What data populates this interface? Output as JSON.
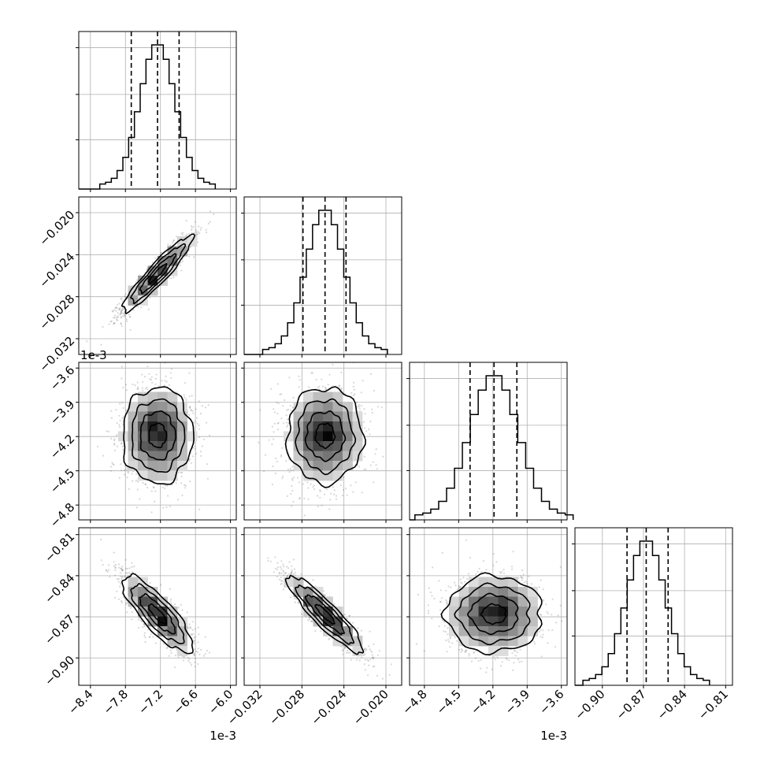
{
  "chart_data": {
    "type": "corner",
    "title": "",
    "parameters": [
      {
        "offset_label": "1e-3",
        "range": [
          -8.6,
          -5.9
        ],
        "ticks": [
          -8.4,
          -7.8,
          -7.2,
          -6.6,
          -6.0
        ],
        "tick_labels": [
          "−8.4",
          "−7.8",
          "−7.2",
          "−6.6",
          "−6.0"
        ],
        "mean": -7.25,
        "sigma": 0.3,
        "quantiles": [
          -7.7,
          -7.25,
          -6.88
        ]
      },
      {
        "offset_label": "",
        "range": [
          -0.0335,
          -0.0185
        ],
        "ticks": [
          -0.032,
          -0.028,
          -0.024,
          -0.02
        ],
        "tick_labels": [
          "−0.032",
          "−0.028",
          "−0.024",
          "−0.020"
        ],
        "mean": -0.0258,
        "sigma": 0.0018,
        "quantiles": [
          -0.0279,
          -0.0258,
          -0.0238
        ]
      },
      {
        "offset_label": "1e-3",
        "range": [
          -4.93,
          -3.55
        ],
        "ticks": [
          -4.8,
          -4.5,
          -4.2,
          -3.9,
          -3.6
        ],
        "tick_labels": [
          "−4.8",
          "−4.5",
          "−4.2",
          "−3.9",
          "−3.6"
        ],
        "mean": -4.19,
        "sigma": 0.21,
        "quantiles": [
          -4.4,
          -4.19,
          -3.99
        ]
      },
      {
        "offset_label": "",
        "range": [
          -0.92,
          -0.805
        ],
        "ticks": [
          -0.9,
          -0.87,
          -0.84,
          -0.81
        ],
        "tick_labels": [
          "−0.90",
          "−0.87",
          "−0.84",
          "−0.81"
        ],
        "mean": -0.868,
        "sigma": 0.014,
        "quantiles": [
          -0.882,
          -0.868,
          -0.852
        ]
      }
    ],
    "correlations": [
      {
        "row": 1,
        "col": 0,
        "rho": 0.93
      },
      {
        "row": 2,
        "col": 0,
        "rho": 0.0
      },
      {
        "row": 2,
        "col": 1,
        "rho": 0.0
      },
      {
        "row": 3,
        "col": 0,
        "rho": -0.82
      },
      {
        "row": 3,
        "col": 1,
        "rho": -0.9
      },
      {
        "row": 3,
        "col": 2,
        "rho": 0.0
      }
    ],
    "histogram_bins": 20,
    "contour_levels_sigma": [
      0.5,
      1.0,
      1.5,
      2.0
    ],
    "grid": true,
    "colors": {
      "line": "#000000",
      "scatter": "#6e6e6e",
      "grid": "#b0b0b0"
    }
  }
}
